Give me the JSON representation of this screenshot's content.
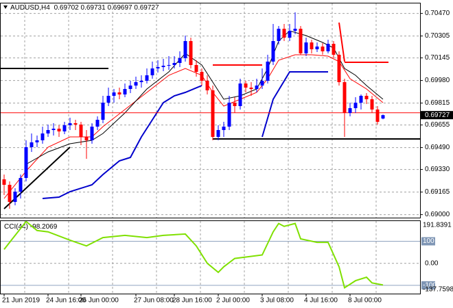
{
  "chart_data": [
    {
      "type": "candlestick",
      "title": "AUDUSD,H4",
      "up_color": "#0000ff",
      "down_color": "#ff0000",
      "grid": true,
      "ylim": [
        0.68978,
        0.70543
      ],
      "yticks": [
        {
          "value": 0.7047,
          "label": "0.70470"
        },
        0.70305,
        0.70145,
        {
          "value": 0.6998,
          "label": "0.69980"
        },
        0.69815,
        0.69655,
        {
          "value": 0.6949,
          "label": "0.69490"
        },
        {
          "value": 0.6933,
          "label": "0.69330"
        },
        0.69165,
        {
          "value": 0.69,
          "label": "0.69000"
        }
      ],
      "xticks": [
        {
          "value": 0,
          "label": "21 Jun 2019"
        },
        {
          "value": 8,
          "label": "24 Jun 16:00"
        },
        {
          "value": 14,
          "label": "26 Jun 00:00"
        },
        {
          "value": 24,
          "label": "27 Jun 08:00"
        },
        {
          "value": 31,
          "label": "28 Jun 16:00"
        },
        {
          "value": 39,
          "label": "2 Jul 00:00"
        },
        {
          "value": 47,
          "label": "3 Jul 08:00"
        },
        {
          "value": 55,
          "label": "4 Jul 16:00"
        },
        {
          "value": 63,
          "label": "8 Jul 00:00"
        }
      ],
      "candles": [
        [
          0.69258,
          0.69293,
          0.69143,
          0.69218
        ],
        [
          0.69218,
          0.69243,
          0.69043,
          0.69093
        ],
        [
          0.69093,
          0.69193,
          0.69068,
          0.69168
        ],
        [
          0.69168,
          0.69293,
          0.69118,
          0.69268
        ],
        [
          0.69268,
          0.69543,
          0.69243,
          0.69493
        ],
        [
          0.69493,
          0.69593,
          0.69458,
          0.69528
        ],
        [
          0.69528,
          0.69578,
          0.69493,
          0.69543
        ],
        [
          0.69543,
          0.69643,
          0.69518,
          0.69593
        ],
        [
          0.69593,
          0.69658,
          0.69568,
          0.69618
        ],
        [
          0.69618,
          0.69668,
          0.69578,
          0.69628
        ],
        [
          0.69628,
          0.69653,
          0.69568,
          0.69608
        ],
        [
          0.69608,
          0.69678,
          0.69588,
          0.69653
        ],
        [
          0.69653,
          0.69708,
          0.69618,
          0.69668
        ],
        [
          0.69668,
          0.69693,
          0.69618,
          0.69658
        ],
        [
          0.69658,
          0.69678,
          0.69508,
          0.69568
        ],
        [
          0.69568,
          0.69618,
          0.69408,
          0.69543
        ],
        [
          0.69543,
          0.69668,
          0.69518,
          0.69643
        ],
        [
          0.69643,
          0.69718,
          0.69618,
          0.69693
        ],
        [
          0.69693,
          0.69868,
          0.69668,
          0.69818
        ],
        [
          0.69818,
          0.69928,
          0.69793,
          0.69868
        ],
        [
          0.69868,
          0.69918,
          0.69818,
          0.69893
        ],
        [
          0.69893,
          0.69928,
          0.69843,
          0.69878
        ],
        [
          0.69878,
          0.69958,
          0.69858,
          0.69918
        ],
        [
          0.69918,
          0.69978,
          0.69888,
          0.69943
        ],
        [
          0.69943,
          0.70008,
          0.69918,
          0.69968
        ],
        [
          0.69968,
          0.70018,
          0.69928,
          0.69978
        ],
        [
          0.69978,
          0.70068,
          0.69958,
          0.70018
        ],
        [
          0.70018,
          0.70118,
          0.69993,
          0.70068
        ],
        [
          0.70068,
          0.70128,
          0.70038,
          0.70078
        ],
        [
          0.70078,
          0.70138,
          0.70048,
          0.70088
        ],
        [
          0.70088,
          0.70158,
          0.70058,
          0.70093
        ],
        [
          0.70093,
          0.70158,
          0.70068,
          0.70108
        ],
        [
          0.70108,
          0.70193,
          0.70078,
          0.70143
        ],
        [
          0.70143,
          0.70308,
          0.70118,
          0.70268
        ],
        [
          0.70268,
          0.70293,
          0.70068,
          0.70093
        ],
        [
          0.70093,
          0.70128,
          0.70008,
          0.70043
        ],
        [
          0.70043,
          0.70068,
          0.69943,
          0.69978
        ],
        [
          0.69978,
          0.70018,
          0.69878,
          0.69908
        ],
        [
          0.69908,
          0.69943,
          0.69543,
          0.69568
        ],
        [
          0.69568,
          0.69653,
          0.69543,
          0.69618
        ],
        [
          0.69618,
          0.69678,
          0.69568,
          0.69643
        ],
        [
          0.69643,
          0.69868,
          0.69618,
          0.69818
        ],
        [
          0.69818,
          0.69858,
          0.69743,
          0.69793
        ],
        [
          0.69793,
          0.69993,
          0.69768,
          0.69958
        ],
        [
          0.69958,
          0.69978,
          0.69893,
          0.69928
        ],
        [
          0.69928,
          0.69968,
          0.69868,
          0.69918
        ],
        [
          0.69918,
          0.69993,
          0.69893,
          0.69943
        ],
        [
          0.69943,
          0.70068,
          0.69918,
          0.69978
        ],
        [
          0.69978,
          0.70168,
          0.69958,
          0.70118
        ],
        [
          0.70118,
          0.70393,
          0.70093,
          0.70268
        ],
        [
          0.70268,
          0.70378,
          0.70243,
          0.70358
        ],
        [
          0.70358,
          0.70393,
          0.70268,
          0.70293
        ],
        [
          0.70293,
          0.70393,
          0.70268,
          0.70343
        ],
        [
          0.70343,
          0.70478,
          0.70318,
          0.70358
        ],
        [
          0.70358,
          0.70378,
          0.70168,
          0.70178
        ],
        [
          0.70178,
          0.70293,
          0.70158,
          0.70258
        ],
        [
          0.70258,
          0.70278,
          0.70178,
          0.70208
        ],
        [
          0.70208,
          0.70258,
          0.70188,
          0.70228
        ],
        [
          0.70228,
          0.70253,
          0.70168,
          0.70193
        ],
        [
          0.70193,
          0.70278,
          0.70178,
          0.70248
        ],
        [
          0.70248,
          0.70268,
          0.70143,
          0.70168
        ],
        [
          0.70168,
          0.70193,
          0.69943,
          0.69968
        ],
        [
          0.69968,
          0.69993,
          0.69568,
          0.69743
        ],
        [
          0.69743,
          0.69818,
          0.69718,
          0.69778
        ],
        [
          0.69778,
          0.69858,
          0.69743,
          0.69818
        ],
        [
          0.69818,
          0.69878,
          0.69768,
          0.69868
        ],
        [
          0.69868,
          0.69888,
          0.69808,
          0.69843
        ],
        [
          0.69843,
          0.69868,
          0.69743,
          0.69768
        ],
        [
          0.69768,
          0.69793,
          0.69658,
          0.69678
        ],
        [
          0.69702,
          0.69731,
          0.69697,
          0.69727
        ]
      ],
      "series": [
        {
          "color": "#ff0000",
          "width": 1,
          "x": [
            0,
            4,
            8,
            12,
            16,
            18,
            22,
            26,
            30,
            33,
            36,
            38,
            40,
            43,
            46,
            48,
            50,
            53,
            56,
            59,
            61,
            63,
            66,
            69
          ],
          "values": [
            0.69118,
            0.69318,
            0.69493,
            0.69568,
            0.69568,
            0.69643,
            0.69768,
            0.69893,
            0.70018,
            0.70068,
            0.70018,
            0.69893,
            0.69793,
            0.69843,
            0.69893,
            0.69993,
            0.70128,
            0.70168,
            0.70168,
            0.70158,
            0.70118,
            0.69993,
            0.69918,
            0.69818
          ]
        },
        {
          "color": "#000000",
          "width": 1,
          "x": [
            4,
            8,
            12,
            16,
            18,
            22,
            26,
            30,
            33,
            36,
            38,
            40,
            43,
            46,
            48,
            50,
            52,
            55,
            58,
            60,
            62,
            64,
            66,
            69
          ],
          "values": [
            0.69368,
            0.69458,
            0.69518,
            0.69543,
            0.69593,
            0.69743,
            0.69918,
            0.70043,
            0.70178,
            0.70093,
            0.69968,
            0.69843,
            0.69868,
            0.69918,
            0.70068,
            0.70268,
            0.70343,
            0.70308,
            0.70258,
            0.70218,
            0.70068,
            0.70018,
            0.69943,
            0.69843
          ]
        },
        {
          "color": "#0000cc",
          "width": 2,
          "x": [
            7,
            10,
            12,
            16,
            18,
            21,
            23,
            25,
            27,
            29,
            31,
            33,
            36,
            37,
            47,
            49,
            52,
            59
          ],
          "values": [
            0.69118,
            0.69128,
            0.69168,
            0.69218,
            0.69293,
            0.69393,
            0.69418,
            0.69568,
            0.69693,
            0.69818,
            0.69868,
            0.69893,
            0.69943,
            null,
            0.69568,
            0.69843,
            0.70043,
            0.70043
          ]
        },
        {
          "color": "#000000",
          "width": 2,
          "x": [
            -1,
            19
          ],
          "values": [
            0.70068,
            0.70068
          ]
        },
        {
          "color": "#ff0000",
          "width": 2,
          "x": [
            38,
            47
          ],
          "values": [
            0.70093,
            0.70093
          ]
        },
        {
          "color": "#ff0000",
          "width": 2,
          "x": [
            62,
            70
          ],
          "values": [
            0.70113,
            0.70113
          ]
        },
        {
          "color": "#000000",
          "width": 2,
          "x": [
            38,
            76
          ],
          "values": [
            0.69553,
            0.69553
          ]
        },
        {
          "color": "#ff0000",
          "width": 1,
          "x": [
            -1,
            76
          ],
          "values": [
            0.69744,
            0.69744
          ]
        },
        {
          "color": "#ff0000",
          "width": 2,
          "x": [
            61,
            62
          ],
          "values": [
            0.70403,
            0.70118
          ]
        },
        {
          "color": "#000000",
          "width": 2,
          "x": [
            0,
            12
          ],
          "values": [
            0.69043,
            0.69493
          ]
        }
      ]
    },
    {
      "type": "line",
      "title": "CCI(44)",
      "ylim": [
        -137.7598,
        191.8391
      ],
      "yticks": [
        100,
        {
          "value": 0,
          "label": "0.00"
        },
        -100
      ],
      "series": [
        {
          "color": "#7fe000",
          "width": 2,
          "x": [
            0,
            1,
            4,
            6,
            8,
            12,
            15,
            18,
            22,
            26,
            29,
            33,
            35,
            37,
            39,
            40,
            42,
            47,
            49,
            50,
            51,
            53,
            54,
            57,
            59,
            61,
            62,
            64,
            66,
            67,
            69
          ],
          "values": [
            63,
            95,
            190,
            149,
            143,
            105,
            79,
            117,
            127,
            117,
            127,
            133,
            79,
            0,
            -41,
            -16,
            22,
            38,
            143,
            181,
            168,
            181,
            111,
            95,
            95,
            -16,
            -111,
            -79,
            -63,
            -89,
            -98.2069
          ]
        }
      ]
    }
  ]
}
